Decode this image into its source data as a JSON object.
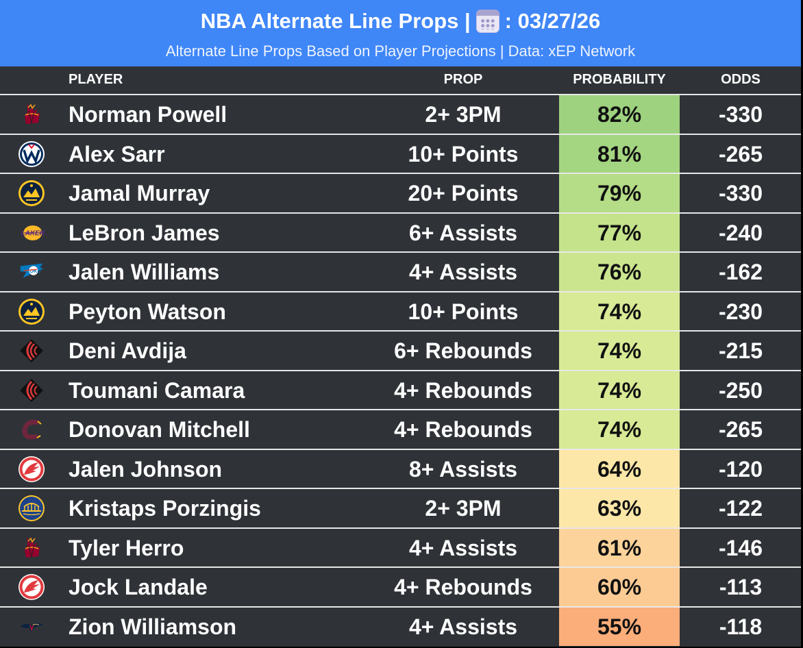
{
  "header": {
    "title_left": "NBA Alternate Line Props |",
    "title_right": ": 03/27/26",
    "subtitle": "Alternate Line Props Based on Player Projections | Data: xEP Network",
    "background": "#3f86f7"
  },
  "columns": {
    "player": "PLAYER",
    "prop": "PROP",
    "probability": "PROBABILITY",
    "odds": "ODDS"
  },
  "rows": [
    {
      "team_icon": "heat-logo-icon",
      "player": "Norman Powell",
      "prop": "2+ 3PM",
      "probability": "82%",
      "prob_value": 0.82,
      "odds": "-330",
      "color": "#9ed27f"
    },
    {
      "team_icon": "wizards-logo-icon",
      "player": "Alex Sarr",
      "prop": "10+ Points",
      "probability": "81%",
      "prob_value": 0.81,
      "odds": "-265",
      "color": "#a4d581"
    },
    {
      "team_icon": "nuggets-logo-icon",
      "player": "Jamal Murray",
      "prop": "20+ Points",
      "probability": "79%",
      "prob_value": 0.79,
      "odds": "-330",
      "color": "#b5dc86"
    },
    {
      "team_icon": "lakers-logo-icon",
      "player": "LeBron James",
      "prop": "6+ Assists",
      "probability": "77%",
      "prob_value": 0.77,
      "odds": "-240",
      "color": "#c5e38b"
    },
    {
      "team_icon": "thunder-logo-icon",
      "player": "Jalen Williams",
      "prop": "4+ Assists",
      "probability": "76%",
      "prob_value": 0.76,
      "odds": "-162",
      "color": "#cbe58e"
    },
    {
      "team_icon": "nuggets-logo-icon",
      "player": "Peyton Watson",
      "prop": "10+ Points",
      "probability": "74%",
      "prob_value": 0.74,
      "odds": "-230",
      "color": "#d8ea95"
    },
    {
      "team_icon": "blazers-logo-icon",
      "player": "Deni Avdija",
      "prop": "6+ Rebounds",
      "probability": "74%",
      "prob_value": 0.74,
      "odds": "-215",
      "color": "#d8ea95"
    },
    {
      "team_icon": "blazers-logo-icon",
      "player": "Toumani Camara",
      "prop": "4+ Rebounds",
      "probability": "74%",
      "prob_value": 0.74,
      "odds": "-250",
      "color": "#d8ea95"
    },
    {
      "team_icon": "cavaliers-logo-icon",
      "player": "Donovan Mitchell",
      "prop": "4+ Rebounds",
      "probability": "74%",
      "prob_value": 0.74,
      "odds": "-265",
      "color": "#d8ea95"
    },
    {
      "team_icon": "hawks-logo-icon",
      "player": "Jalen Johnson",
      "prop": "8+ Assists",
      "probability": "64%",
      "prob_value": 0.64,
      "odds": "-120",
      "color": "#fde7a8"
    },
    {
      "team_icon": "warriors-logo-icon",
      "player": "Kristaps Porzingis",
      "prop": "2+ 3PM",
      "probability": "63%",
      "prob_value": 0.63,
      "odds": "-122",
      "color": "#fde7a8"
    },
    {
      "team_icon": "heat-logo-icon",
      "player": "Tyler Herro",
      "prop": "4+ Assists",
      "probability": "61%",
      "prob_value": 0.61,
      "odds": "-146",
      "color": "#fcd39a"
    },
    {
      "team_icon": "hawks-logo-icon",
      "player": "Jock Landale",
      "prop": "4+ Rebounds",
      "probability": "60%",
      "prob_value": 0.6,
      "odds": "-113",
      "color": "#fccb94"
    },
    {
      "team_icon": "pelicans-logo-icon",
      "player": "Zion Williamson",
      "prop": "4+ Assists",
      "probability": "55%",
      "prob_value": 0.55,
      "odds": "-118",
      "color": "#fbad7a"
    }
  ]
}
